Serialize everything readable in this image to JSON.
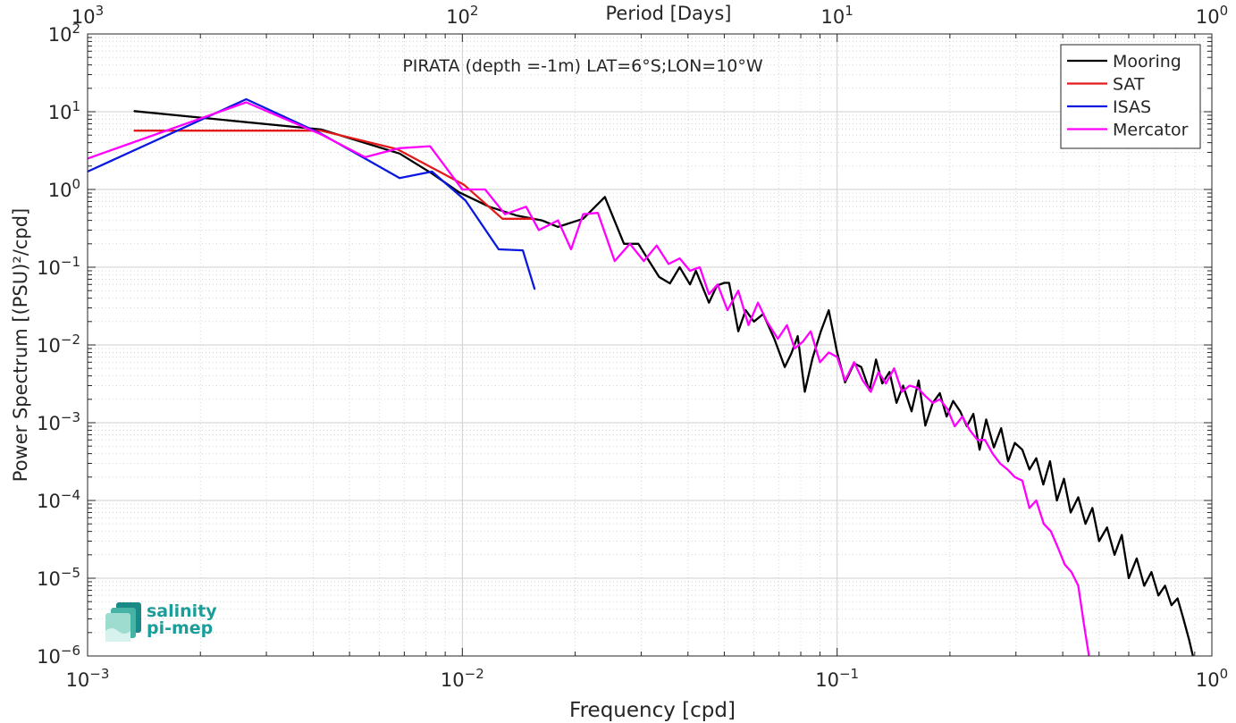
{
  "chart_data": {
    "type": "line",
    "title": "PIRATA (depth =-1m) LAT=6°S;LON=10°W",
    "xlabel": "Frequency [cpd]",
    "ylabel": "Power Spectrum [(PSU)²/cpd]",
    "top_xlabel": "Period [Days]",
    "xscale": "log",
    "yscale": "log",
    "xlim": [
      0.001,
      1
    ],
    "ylim": [
      1e-06,
      100
    ],
    "x_ticks": [
      "10^-3",
      "10^-2",
      "10^-1",
      "10^0"
    ],
    "top_ticks": [
      "10^3",
      "10^2",
      "10^1",
      "10^0"
    ],
    "y_ticks": [
      "10^2",
      "10^1",
      "10^0",
      "10^-1",
      "10^-2",
      "10^-3",
      "10^-4",
      "10^-5",
      "10^-6"
    ],
    "grid": true,
    "minor_grid": true,
    "legend_position": "top-right",
    "series": [
      {
        "name": "Mooring",
        "color": "#000000",
        "x": [
          0.00133,
          0.0042,
          0.0068,
          0.0083,
          0.0098,
          0.0118,
          0.014,
          0.0163,
          0.018,
          0.021,
          0.024,
          0.027,
          0.0295,
          0.0315,
          0.0335,
          0.0358,
          0.038,
          0.0405,
          0.042,
          0.0455,
          0.0478,
          0.05,
          0.0515,
          0.0545,
          0.057,
          0.06,
          0.0635,
          0.068,
          0.0725,
          0.0755,
          0.0785,
          0.082,
          0.086,
          0.0905,
          0.095,
          0.1,
          0.105,
          0.111,
          0.116,
          0.122,
          0.127,
          0.132,
          0.138,
          0.144,
          0.15,
          0.158,
          0.165,
          0.172,
          0.18,
          0.188,
          0.196,
          0.204,
          0.213,
          0.222,
          0.231,
          0.24,
          0.25,
          0.262,
          0.274,
          0.286,
          0.298,
          0.312,
          0.326,
          0.34,
          0.355,
          0.37,
          0.386,
          0.403,
          0.42,
          0.44,
          0.46,
          0.48,
          0.5,
          0.525,
          0.55,
          0.575,
          0.6,
          0.63,
          0.66,
          0.69,
          0.72,
          0.75,
          0.78,
          0.81,
          0.84,
          0.87,
          0.89
        ],
        "y": [
          10.2,
          5.9,
          2.9,
          1.6,
          0.92,
          0.6,
          0.46,
          0.4,
          0.33,
          0.42,
          0.8,
          0.2,
          0.2,
          0.12,
          0.075,
          0.062,
          0.1,
          0.06,
          0.09,
          0.035,
          0.058,
          0.063,
          0.063,
          0.015,
          0.028,
          0.02,
          0.025,
          0.012,
          0.0052,
          0.0078,
          0.013,
          0.0025,
          0.0068,
          0.015,
          0.028,
          0.008,
          0.0033,
          0.0058,
          0.0052,
          0.0026,
          0.0065,
          0.0032,
          0.0045,
          0.0018,
          0.003,
          0.0014,
          0.0035,
          0.00092,
          0.0018,
          0.0024,
          0.0012,
          0.0019,
          0.0014,
          0.0009,
          0.0013,
          0.00045,
          0.0011,
          0.00048,
          0.00085,
          0.00032,
          0.00055,
          0.00045,
          0.00025,
          0.00035,
          0.00016,
          0.00032,
          0.0001,
          0.00019,
          7e-05,
          0.00011,
          5e-05,
          8e-05,
          3e-05,
          4.5e-05,
          2e-05,
          3.6e-05,
          1e-05,
          1.8e-05,
          8e-06,
          1.2e-05,
          6e-06,
          8e-06,
          4.5e-06,
          5.5e-06,
          3e-06,
          1.6e-06,
          1e-06
        ]
      },
      {
        "name": "SAT",
        "color": "#e31a1c",
        "x": [
          0.00133,
          0.0042,
          0.0067,
          0.0101,
          0.0128,
          0.0156
        ],
        "y": [
          5.7,
          5.7,
          3.3,
          1.15,
          0.42,
          0.42
        ]
      },
      {
        "name": "ISAS",
        "color": "#0a18e0",
        "x": [
          0.001,
          0.00265,
          0.0042,
          0.0055,
          0.0068,
          0.0083,
          0.0102,
          0.0125,
          0.0145,
          0.0156
        ],
        "y": [
          1.7,
          14.5,
          5.2,
          2.5,
          1.4,
          1.7,
          0.72,
          0.17,
          0.165,
          0.052
        ]
      },
      {
        "name": "Mercator",
        "color": "#ff00ff",
        "x": [
          0.001,
          0.00265,
          0.0042,
          0.0055,
          0.0068,
          0.0082,
          0.01,
          0.0115,
          0.013,
          0.0148,
          0.016,
          0.018,
          0.0195,
          0.021,
          0.023,
          0.0255,
          0.028,
          0.0305,
          0.033,
          0.0355,
          0.038,
          0.0405,
          0.043,
          0.0455,
          0.048,
          0.051,
          0.0545,
          0.058,
          0.0615,
          0.065,
          0.0695,
          0.0735,
          0.077,
          0.081,
          0.085,
          0.09,
          0.095,
          0.1,
          0.105,
          0.111,
          0.117,
          0.123,
          0.129,
          0.135,
          0.142,
          0.149,
          0.156,
          0.164,
          0.172,
          0.18,
          0.188,
          0.197,
          0.206,
          0.216,
          0.226,
          0.237,
          0.248,
          0.26,
          0.272,
          0.285,
          0.298,
          0.312,
          0.326,
          0.34,
          0.356,
          0.372,
          0.388,
          0.405,
          0.422,
          0.44,
          0.456,
          0.47
        ],
        "y": [
          2.5,
          13.2,
          5.1,
          2.6,
          3.4,
          3.6,
          1.0,
          1.0,
          0.48,
          0.6,
          0.3,
          0.4,
          0.17,
          0.48,
          0.5,
          0.12,
          0.2,
          0.12,
          0.19,
          0.11,
          0.13,
          0.09,
          0.1,
          0.045,
          0.06,
          0.028,
          0.05,
          0.018,
          0.035,
          0.02,
          0.012,
          0.018,
          0.009,
          0.011,
          0.015,
          0.006,
          0.008,
          0.007,
          0.0035,
          0.006,
          0.0035,
          0.0025,
          0.0045,
          0.0032,
          0.005,
          0.0025,
          0.003,
          0.0028,
          0.0022,
          0.0018,
          0.002,
          0.0015,
          0.0009,
          0.0012,
          0.0008,
          0.0006,
          0.0006,
          0.0004,
          0.0003,
          0.00025,
          0.0002,
          0.00018,
          8e-05,
          0.0001,
          5e-05,
          4e-05,
          2.5e-05,
          1.5e-05,
          1.2e-05,
          8e-06,
          2.5e-06,
          1e-06
        ]
      }
    ]
  },
  "logo": {
    "line1": "salinity",
    "line2": "pi-mep"
  }
}
